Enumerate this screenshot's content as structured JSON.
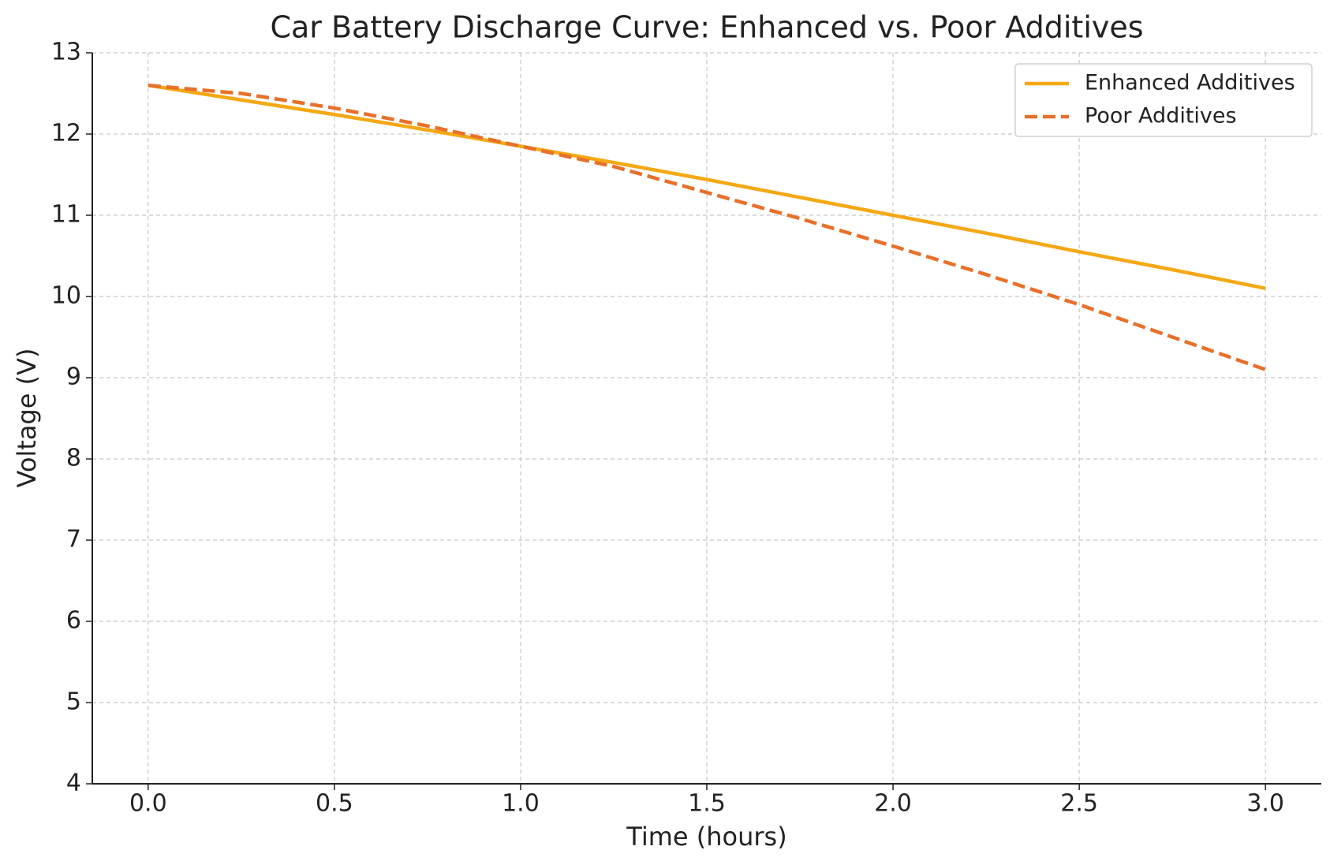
{
  "chart_data": {
    "type": "line",
    "title": "Car Battery Discharge Curve: Enhanced vs. Poor Additives",
    "x_label": "Time (hours)",
    "y_label": "Voltage (V)",
    "x": [
      0,
      0.25,
      0.5,
      0.75,
      1,
      1.25,
      1.5,
      1.75,
      2,
      2.25,
      2.5,
      2.75,
      3
    ],
    "series": [
      {
        "name": "Enhanced Additives",
        "color": "#f5a814",
        "dash": false,
        "values": [
          12.6,
          12.42,
          12.24,
          12.05,
          11.85,
          11.65,
          11.44,
          11.22,
          11.0,
          10.78,
          10.55,
          10.33,
          10.1
        ]
      },
      {
        "name": "Poor Additives",
        "color": "#e8702a",
        "dash": true,
        "values": [
          12.6,
          12.5,
          12.32,
          12.1,
          11.85,
          11.6,
          11.28,
          10.96,
          10.62,
          10.27,
          9.9,
          9.5,
          9.1
        ]
      }
    ],
    "xlim": [
      -0.15,
      3.15
    ],
    "ylim": [
      4,
      13
    ],
    "xticks": [
      {
        "value": 0,
        "label": "0.0"
      },
      0.5,
      {
        "value": 1,
        "label": "1.0"
      },
      1.5,
      {
        "value": 2,
        "label": "2.0"
      },
      2.5,
      {
        "value": 3,
        "label": "3.0"
      }
    ],
    "yticks": [
      4,
      5,
      6,
      7,
      8,
      9,
      10,
      11,
      12,
      13
    ],
    "grid": true,
    "legend": "upper right"
  }
}
